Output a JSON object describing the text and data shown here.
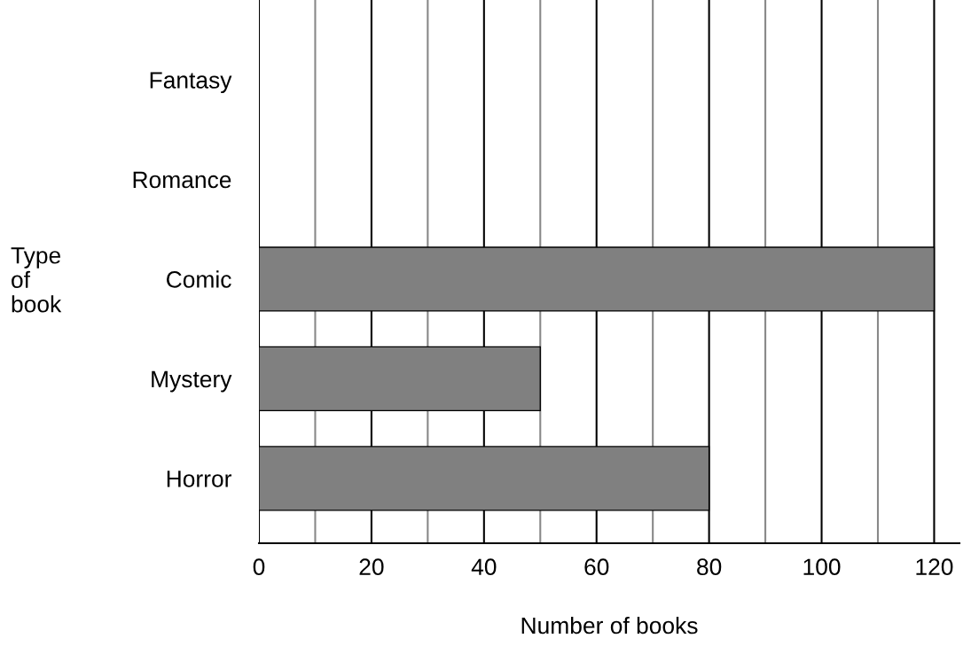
{
  "chart_data": {
    "type": "bar",
    "orientation": "horizontal",
    "xlabel": "Number of books",
    "ylabel": "Type\nof\nbook",
    "categories": [
      "Fantasy",
      "Romance",
      "Comic",
      "Mystery",
      "Horror"
    ],
    "values": [
      null,
      null,
      120,
      50,
      80
    ],
    "color": "#808080",
    "xlim": [
      0,
      124.5
    ],
    "xticks": [
      0,
      {
        "value": 10,
        "label": null
      },
      20,
      {
        "value": 30,
        "label": null
      },
      40,
      {
        "value": 50,
        "label": null
      },
      60,
      {
        "value": 70,
        "label": null
      },
      80,
      {
        "value": 90,
        "label": null
      },
      100,
      {
        "value": 110,
        "label": null
      },
      120
    ],
    "grid": "x"
  }
}
